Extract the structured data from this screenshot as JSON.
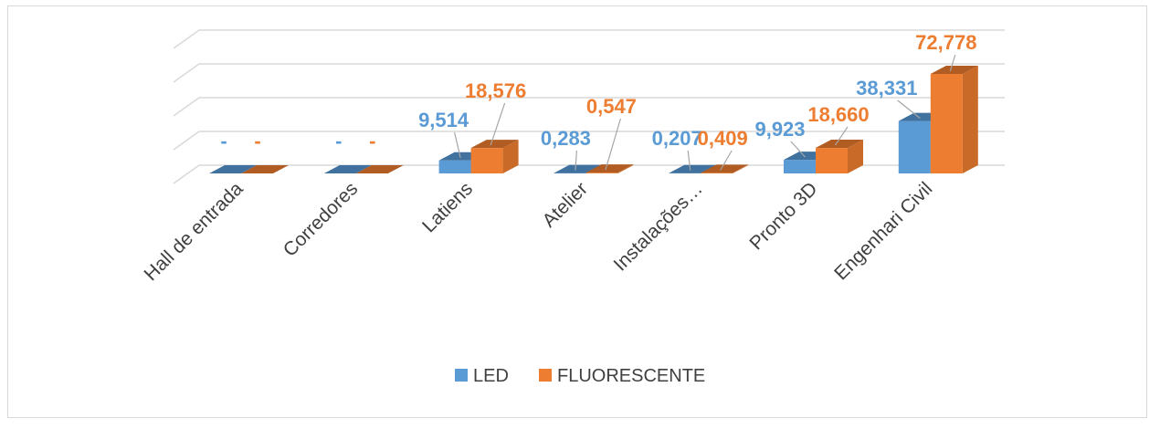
{
  "chart_data": {
    "type": "bar",
    "categories": [
      "Hall de entrada",
      "Corredores",
      "Latiens",
      "Atelier",
      "Instalações…",
      "Pronto 3D",
      "Engenhari Civil"
    ],
    "series": [
      {
        "name": "LED",
        "values": [
          0,
          0,
          9.514,
          0.283,
          0.207,
          9.923,
          38.331
        ],
        "labels": [
          "-",
          "-",
          "9,514",
          "0,283",
          "0,207",
          "9,923",
          "38,331"
        ]
      },
      {
        "name": "FLUORESCENTE",
        "values": [
          0,
          0,
          18.576,
          0.547,
          0.409,
          18.66,
          72.778
        ],
        "labels": [
          "-",
          "-",
          "18,576",
          "0,547",
          "0,409",
          "18,660",
          "72,778"
        ]
      }
    ],
    "colors": {
      "LED": "#5b9bd5",
      "FLUORESCENTE": "#ed7d31"
    },
    "legend": "bottom",
    "grid": true,
    "projection": "3d"
  }
}
